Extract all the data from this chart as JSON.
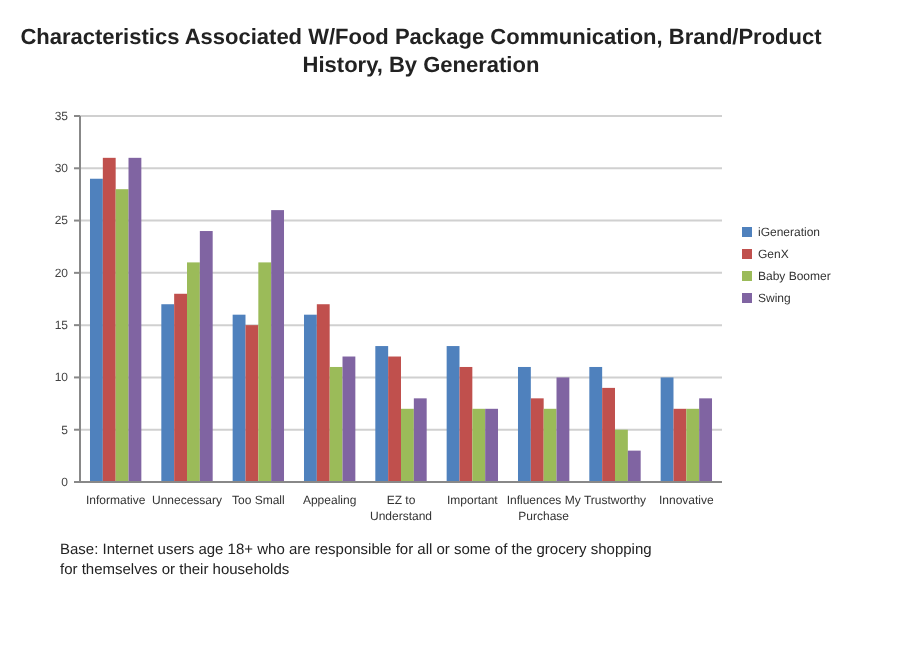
{
  "chart_data": {
    "type": "bar",
    "title": "Characteristics Associated W/Food Package Communication, Brand/Product History, By Generation",
    "categories": [
      "Informative",
      "Unnecessary",
      "Too Small",
      "Appealing",
      "EZ to Understand",
      "Important",
      "Influences My Purchase",
      "Trustworthy",
      "Innovative"
    ],
    "series": [
      {
        "name": "iGeneration",
        "color": "#4f81bd",
        "values": [
          29,
          17,
          16,
          16,
          13,
          13,
          11,
          11,
          10
        ]
      },
      {
        "name": "GenX",
        "color": "#c0504d",
        "values": [
          31,
          18,
          15,
          17,
          12,
          11,
          8,
          9,
          7
        ]
      },
      {
        "name": "Baby Boomer",
        "color": "#9bbb59",
        "values": [
          28,
          21,
          21,
          11,
          7,
          7,
          7,
          5,
          7
        ]
      },
      {
        "name": "Swing",
        "color": "#8064a2",
        "values": [
          31,
          24,
          26,
          12,
          8,
          7,
          10,
          3,
          8
        ]
      }
    ],
    "ylim": [
      0,
      35
    ],
    "yticks": [
      0,
      5,
      10,
      15,
      20,
      25,
      30,
      35
    ],
    "grid": "y",
    "legend": "right",
    "annotations": [
      "Base: Internet users age 18+ who are responsible for all or some of the grocery shopping for themselves or their households"
    ]
  }
}
